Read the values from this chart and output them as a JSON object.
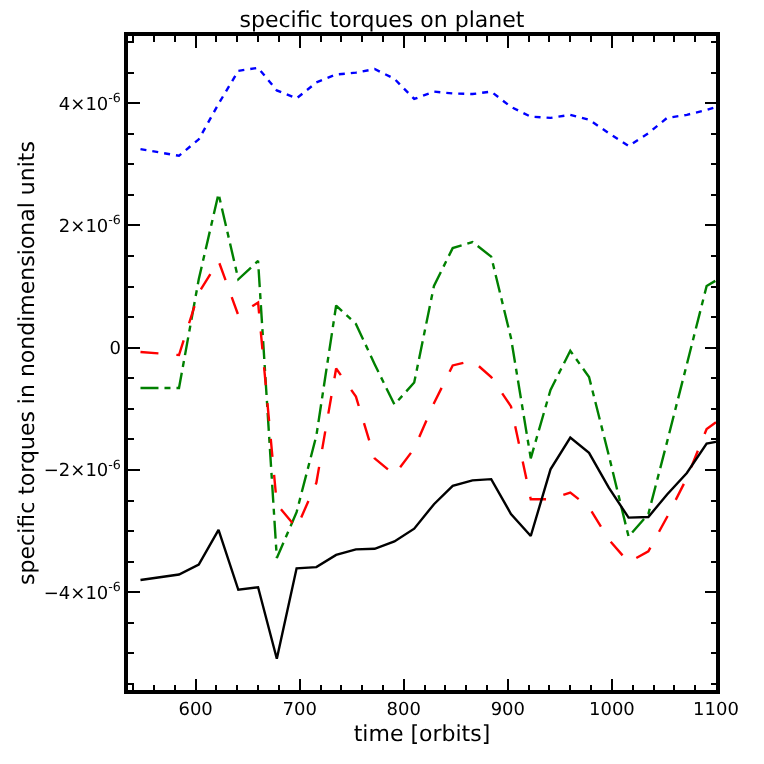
{
  "chart_data": {
    "type": "line",
    "title": "specific torques on planet",
    "xlabel": "time [orbits]",
    "ylabel": "specific torques in nondimensional units",
    "x": [
      547,
      584,
      603,
      622,
      641,
      660,
      678,
      697,
      716,
      735,
      754,
      772,
      791,
      810,
      829,
      847,
      866,
      884,
      903,
      922,
      941,
      960,
      978,
      997,
      1016,
      1035,
      1053,
      1072,
      1091,
      1100
    ],
    "series": [
      {
        "color": "#0000ff",
        "line_style": "dotted",
        "values": [
          3.25e-06,
          3.14e-06,
          3.41e-06,
          3.99e-06,
          4.53e-06,
          4.58e-06,
          4.21e-06,
          4.08e-06,
          4.34e-06,
          4.47e-06,
          4.5e-06,
          4.56e-06,
          4.4e-06,
          4.07e-06,
          4.19e-06,
          4.16e-06,
          4.15e-06,
          4.19e-06,
          3.94e-06,
          3.78e-06,
          3.76e-06,
          3.81e-06,
          3.73e-06,
          3.51e-06,
          3.3e-06,
          3.51e-06,
          3.76e-06,
          3.81e-06,
          3.89e-06,
          3.94e-06
        ]
      },
      {
        "color": "#008000",
        "line_style": "dashdot",
        "values": [
          -6.6e-07,
          -6.6e-07,
          1.12e-06,
          2.52e-06,
          1.12e-06,
          1.42e-06,
          -3.44e-06,
          -2.69e-06,
          -1.44e-06,
          6.9e-07,
          3.9e-07,
          -2.7e-07,
          -9.3e-07,
          -5.7e-07,
          1.01e-06,
          1.63e-06,
          1.73e-06,
          1.49e-06,
          1.6e-07,
          -1.81e-06,
          -6.9e-07,
          -5e-08,
          -4.8e-07,
          -1.76e-06,
          -3.09e-06,
          -2.72e-06,
          -1.54e-06,
          -2.7e-07,
          1.01e-06,
          1.1e-06
        ]
      },
      {
        "color": "#ff0000",
        "line_style": "dashed",
        "values": [
          -7e-08,
          -1.2e-07,
          9e-07,
          1.42e-06,
          5.3e-07,
          7.4e-07,
          -2.56e-06,
          -2.95e-06,
          -2.21e-06,
          -3.4e-07,
          -8e-07,
          -1.81e-06,
          -2.08e-06,
          -1.65e-06,
          -9.1e-07,
          -2.9e-07,
          -2.1e-07,
          -4.8e-07,
          -9.6e-07,
          -2.48e-06,
          -2.48e-06,
          -2.37e-06,
          -2.61e-06,
          -3.14e-06,
          -3.51e-06,
          -3.33e-06,
          -2.77e-06,
          -2.13e-06,
          -1.33e-06,
          -1.22e-06
        ]
      },
      {
        "color": "#000000",
        "line_style": "solid",
        "values": [
          -3.8e-06,
          -3.71e-06,
          -3.55e-06,
          -2.98e-06,
          -3.96e-06,
          -3.92e-06,
          -5.09e-06,
          -3.61e-06,
          -3.59e-06,
          -3.39e-06,
          -3.3e-06,
          -3.29e-06,
          -3.17e-06,
          -2.96e-06,
          -2.56e-06,
          -2.26e-06,
          -2.17e-06,
          -2.15e-06,
          -2.72e-06,
          -3.08e-06,
          -1.99e-06,
          -1.47e-06,
          -1.72e-06,
          -2.29e-06,
          -2.78e-06,
          -2.77e-06,
          -2.4e-06,
          -2.05e-06,
          -1.57e-06,
          -1.54e-06
        ]
      }
    ],
    "xlim": [
      535,
      1100
    ],
    "xticks": [
      600,
      700,
      800,
      900,
      1000,
      1100
    ],
    "ylim": [
      -5.6e-06,
      5.1e-06
    ],
    "yticks": [
      {
        "value": -4e-06,
        "label": "−4×10$^{-6}$"
      },
      {
        "value": -2e-06,
        "label": "−2×10$^{-6}$"
      },
      {
        "value": 0,
        "label": "0"
      },
      {
        "value": 2e-06,
        "label": "2×10$^{-6}$"
      },
      {
        "value": 4e-06,
        "label": "4×10$^{-6}$"
      }
    ],
    "marker": "none"
  }
}
